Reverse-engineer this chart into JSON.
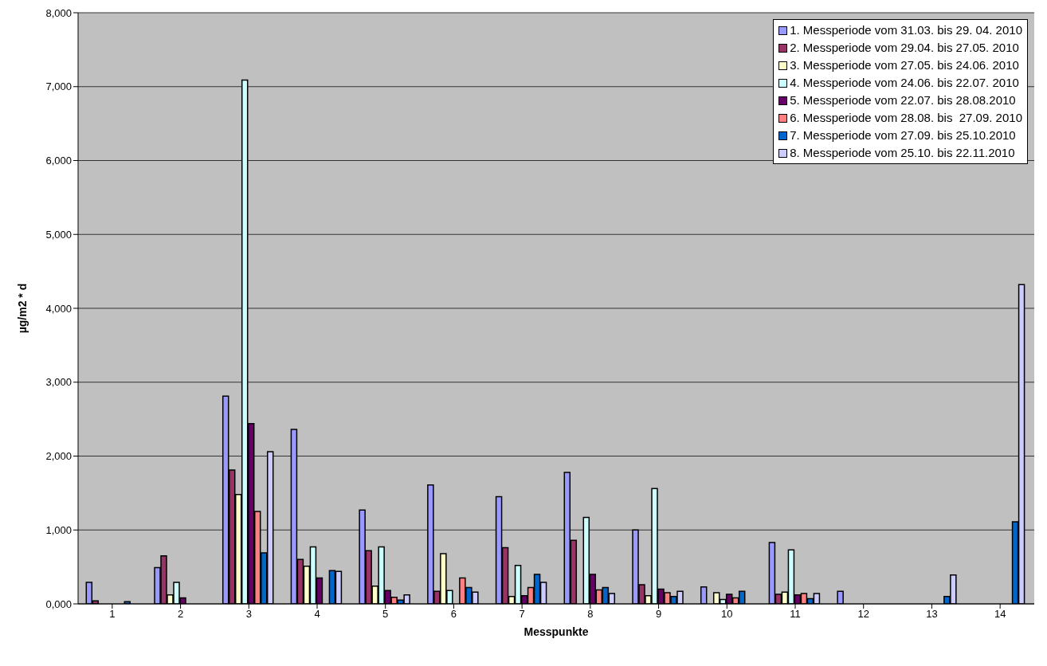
{
  "chart_data": {
    "type": "bar",
    "xlabel": "Messpunkte",
    "ylabel": "µg/m2 * d",
    "categories": [
      "1",
      "2",
      "3",
      "4",
      "5",
      "6",
      "7",
      "8",
      "9",
      "10",
      "11",
      "12",
      "13",
      "14"
    ],
    "series": [
      {
        "name": "1. Messperiode vom 31.03. bis 29. 04. 2010",
        "color": "#9999ff",
        "values": [
          290,
          490,
          2810,
          2360,
          1270,
          1610,
          1450,
          1780,
          1000,
          230,
          830,
          170,
          null,
          null
        ]
      },
      {
        "name": "2. Messperiode vom 29.04. bis 27.05. 2010",
        "color": "#993366",
        "values": [
          40,
          650,
          1810,
          600,
          720,
          170,
          760,
          860,
          260,
          null,
          130,
          null,
          null,
          null
        ]
      },
      {
        "name": "3. Messperiode vom 27.05. bis 24.06. 2010",
        "color": "#ffffcc",
        "values": [
          null,
          120,
          1480,
          510,
          240,
          680,
          100,
          null,
          110,
          150,
          160,
          null,
          null,
          null
        ]
      },
      {
        "name": "4. Messperiode vom 24.06. bis 22.07. 2010",
        "color": "#ccffff",
        "values": [
          null,
          290,
          7090,
          770,
          770,
          180,
          520,
          1170,
          1560,
          60,
          730,
          null,
          null,
          null
        ]
      },
      {
        "name": "5. Messperiode vom 22.07. bis 28.08.2010",
        "color": "#660066",
        "values": [
          null,
          80,
          2440,
          350,
          180,
          null,
          110,
          400,
          200,
          130,
          120,
          null,
          null,
          null
        ]
      },
      {
        "name": "6. Messperiode vom 28.08. bis  27.09. 2010",
        "color": "#ff8080",
        "values": [
          null,
          null,
          1250,
          null,
          90,
          350,
          220,
          190,
          150,
          80,
          140,
          null,
          null,
          null
        ]
      },
      {
        "name": "7. Messperiode vom 27.09. bis 25.10.2010",
        "color": "#0066cc",
        "values": [
          30,
          null,
          690,
          450,
          50,
          220,
          400,
          220,
          100,
          170,
          70,
          null,
          100,
          1110
        ]
      },
      {
        "name": "8. Messperiode vom 25.10. bis 22.11.2010",
        "color": "#ccccff",
        "values": [
          null,
          null,
          2060,
          440,
          120,
          160,
          290,
          140,
          170,
          null,
          140,
          null,
          390,
          4320
        ]
      }
    ],
    "ylim": [
      0,
      8000
    ],
    "yticks": [
      {
        "value": 0,
        "label": "0,000"
      },
      {
        "value": 1000,
        "label": "1,000"
      },
      {
        "value": 2000,
        "label": "2,000"
      },
      {
        "value": 3000,
        "label": "3,000"
      },
      {
        "value": 4000,
        "label": "4,000"
      },
      {
        "value": 5000,
        "label": "5,000"
      },
      {
        "value": 6000,
        "label": "6,000"
      },
      {
        "value": 7000,
        "label": "7,000"
      },
      {
        "value": 8000,
        "label": "8,000"
      }
    ],
    "grid": "y",
    "legend": "top right"
  }
}
